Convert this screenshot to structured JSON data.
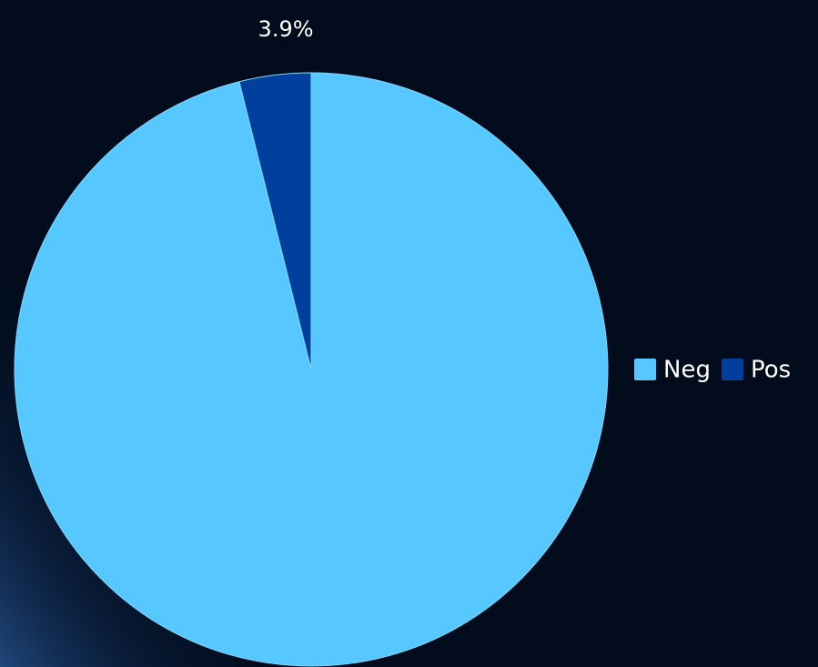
{
  "chart_data": {
    "type": "pie",
    "categories": [
      "Neg",
      "Pos"
    ],
    "values": [
      96.1,
      3.9
    ],
    "value_labels": [
      null,
      "3.9%"
    ],
    "colors": [
      "#56c8ff",
      "#003f9c"
    ],
    "legend": "right"
  }
}
